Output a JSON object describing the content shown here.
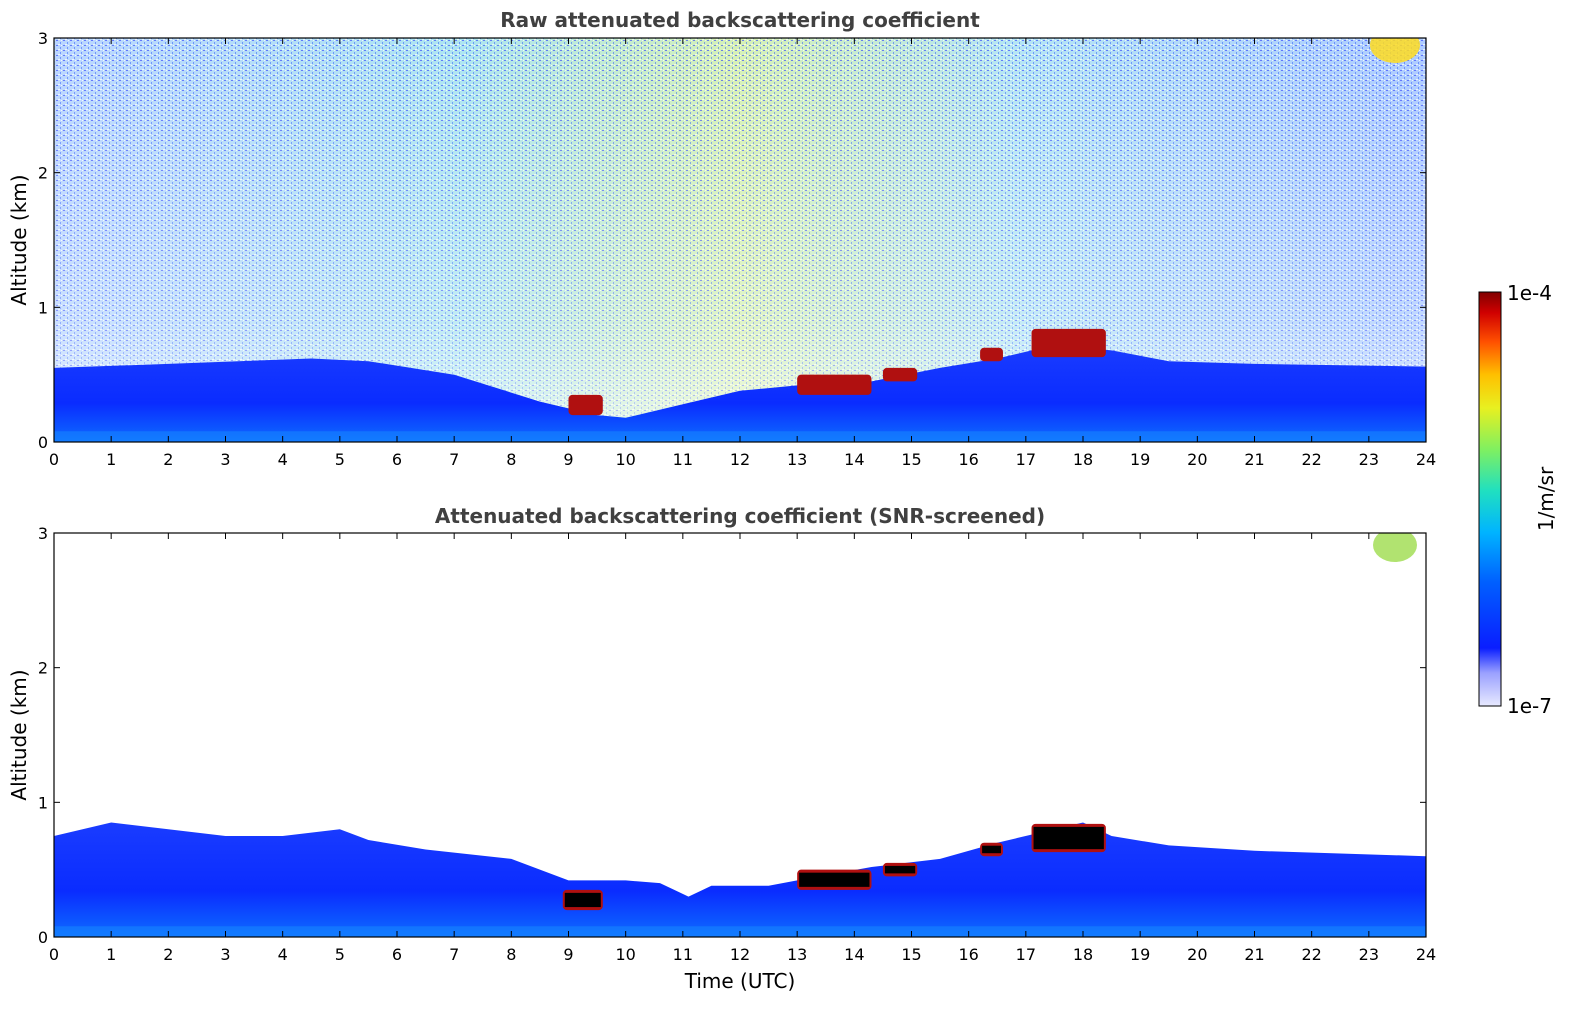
{
  "chart_data": [
    {
      "type": "heatmap",
      "title": "Raw attenuated backscattering coefficient",
      "xlabel": "",
      "ylabel": "Altitude (km)",
      "xlim": [
        0,
        24
      ],
      "ylim": [
        0,
        3
      ],
      "xticks": [
        "0",
        "1",
        "2",
        "3",
        "4",
        "5",
        "6",
        "7",
        "8",
        "9",
        "10",
        "11",
        "12",
        "13",
        "14",
        "15",
        "16",
        "17",
        "18",
        "19",
        "20",
        "21",
        "22",
        "23",
        "24"
      ],
      "yticks": [
        "0",
        "1",
        "2",
        "3"
      ],
      "boundary_layer_top_km": [
        [
          0,
          0.55
        ],
        [
          2,
          0.58
        ],
        [
          4.5,
          0.62
        ],
        [
          5.5,
          0.6
        ],
        [
          7,
          0.5
        ],
        [
          8.5,
          0.3
        ],
        [
          9.5,
          0.2
        ],
        [
          10,
          0.18
        ],
        [
          11,
          0.28
        ],
        [
          12,
          0.38
        ],
        [
          13,
          0.42
        ],
        [
          14.3,
          0.45
        ],
        [
          15.5,
          0.55
        ],
        [
          16.5,
          0.62
        ],
        [
          17.5,
          0.72
        ],
        [
          18.5,
          0.68
        ],
        [
          19.5,
          0.6
        ],
        [
          21,
          0.58
        ],
        [
          24,
          0.56
        ]
      ],
      "cloud_layers": [
        {
          "x": [
            9.0,
            9.6
          ],
          "y": [
            0.2,
            0.35
          ]
        },
        {
          "x": [
            13.0,
            14.3
          ],
          "y": [
            0.35,
            0.5
          ]
        },
        {
          "x": [
            14.5,
            15.1
          ],
          "y": [
            0.45,
            0.55
          ]
        },
        {
          "x": [
            16.2,
            16.6
          ],
          "y": [
            0.6,
            0.7
          ]
        },
        {
          "x": [
            17.1,
            18.4
          ],
          "y": [
            0.63,
            0.84
          ]
        }
      ],
      "noise_level": "high"
    },
    {
      "type": "heatmap",
      "title": "Attenuated backscattering coefficient (SNR-screened)",
      "xlabel": "Time (UTC)",
      "ylabel": "Altitude (km)",
      "xlim": [
        0,
        24
      ],
      "ylim": [
        0,
        3
      ],
      "xticks": [
        "0",
        "1",
        "2",
        "3",
        "4",
        "5",
        "6",
        "7",
        "8",
        "9",
        "10",
        "11",
        "12",
        "13",
        "14",
        "15",
        "16",
        "17",
        "18",
        "19",
        "20",
        "21",
        "22",
        "23",
        "24"
      ],
      "yticks": [
        "0",
        "1",
        "2",
        "3"
      ],
      "boundary_layer_top_km": [
        [
          0,
          0.75
        ],
        [
          1,
          0.85
        ],
        [
          2,
          0.8
        ],
        [
          3,
          0.75
        ],
        [
          4,
          0.75
        ],
        [
          5,
          0.8
        ],
        [
          5.5,
          0.72
        ],
        [
          6.5,
          0.65
        ],
        [
          8,
          0.58
        ],
        [
          9,
          0.42
        ],
        [
          10,
          0.42
        ],
        [
          10.6,
          0.4
        ],
        [
          11.1,
          0.3
        ],
        [
          11.5,
          0.38
        ],
        [
          12.5,
          0.38
        ],
        [
          13,
          0.42
        ],
        [
          14.3,
          0.52
        ],
        [
          15.5,
          0.58
        ],
        [
          16.5,
          0.7
        ],
        [
          17.5,
          0.8
        ],
        [
          18,
          0.85
        ],
        [
          18.5,
          0.75
        ],
        [
          19.5,
          0.68
        ],
        [
          21,
          0.64
        ],
        [
          22.5,
          0.62
        ],
        [
          24,
          0.6
        ]
      ],
      "cloud_layers": [
        {
          "x": [
            8.9,
            9.6
          ],
          "y": [
            0.2,
            0.35
          ]
        },
        {
          "x": [
            13.0,
            14.3
          ],
          "y": [
            0.35,
            0.5
          ]
        },
        {
          "x": [
            14.5,
            15.1
          ],
          "y": [
            0.45,
            0.55
          ]
        },
        {
          "x": [
            16.2,
            16.6
          ],
          "y": [
            0.6,
            0.7
          ]
        },
        {
          "x": [
            17.1,
            18.4
          ],
          "y": [
            0.63,
            0.84
          ]
        }
      ],
      "noise_level": "low"
    }
  ],
  "colorbar": {
    "max_label": "1e-4",
    "min_label": "1e-7",
    "unit_label": "1/m/sr",
    "scale": "log",
    "colormap": "jet"
  },
  "colors": {
    "low_signal": "#0a1eff",
    "aerosol": "#1050ff",
    "cloud": "#b01010",
    "cloud_core": "#000000",
    "frame": "#000000",
    "title": "#404040"
  }
}
